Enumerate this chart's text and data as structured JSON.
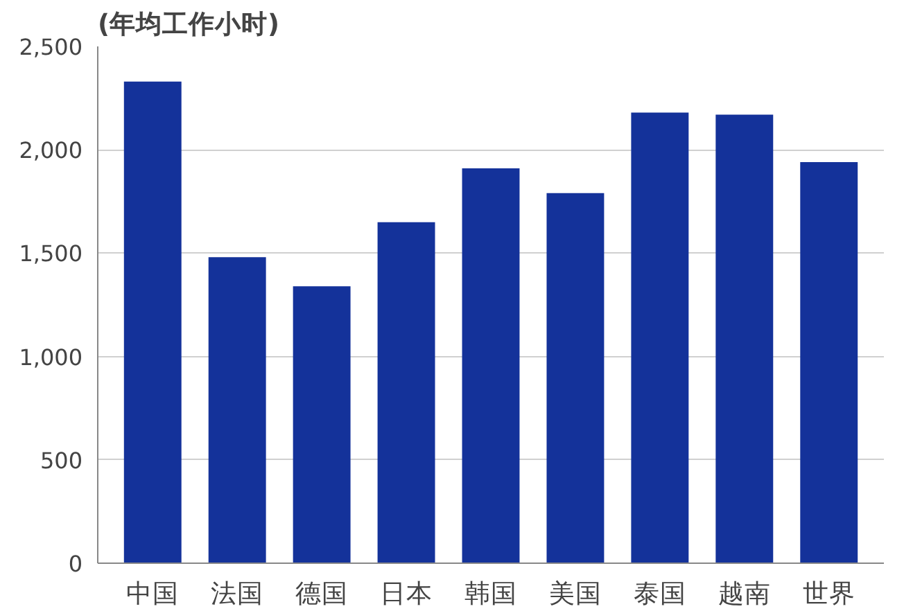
{
  "chart_data": {
    "type": "bar",
    "ylabel": "(年均工作小时)",
    "categories": [
      "中国",
      "法国",
      "德国",
      "日本",
      "韩国",
      "美国",
      "泰国",
      "越南",
      "世界"
    ],
    "values": [
      2330,
      1480,
      1340,
      1650,
      1910,
      1790,
      2180,
      2170,
      1940
    ],
    "color": "#14329a",
    "ylim": [
      0,
      2500
    ],
    "yticks": [
      0,
      {
        "value": 500,
        "label": "500"
      },
      {
        "value": 1000,
        "label": "1,000"
      },
      {
        "value": 1500,
        "label": "1,500"
      },
      {
        "value": 2000,
        "label": "2,000"
      },
      {
        "value": 2500,
        "label": "2,500"
      }
    ],
    "grid": "y"
  }
}
